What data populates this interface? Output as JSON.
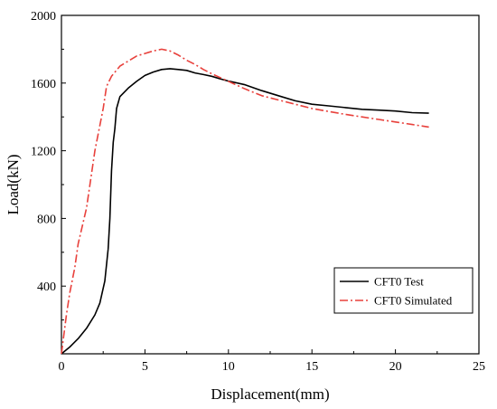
{
  "chart_data": {
    "type": "line",
    "title": "",
    "xlabel": "Displacement(mm)",
    "ylabel": "Load(kN)",
    "xlim": [
      0,
      25
    ],
    "ylim": [
      0,
      2000
    ],
    "xticks": [
      0,
      5,
      10,
      15,
      20,
      25
    ],
    "yticks": [
      400,
      800,
      1200,
      1600,
      2000
    ],
    "grid": false,
    "legend_position": "bottom-right",
    "series": [
      {
        "name": "CFT0 Test",
        "color": "#000000",
        "style": "solid",
        "points": [
          [
            0,
            0
          ],
          [
            0.5,
            40
          ],
          [
            1,
            90
          ],
          [
            1.5,
            150
          ],
          [
            2,
            230
          ],
          [
            2.3,
            300
          ],
          [
            2.6,
            430
          ],
          [
            2.8,
            620
          ],
          [
            2.9,
            800
          ],
          [
            3.0,
            1080
          ],
          [
            3.1,
            1250
          ],
          [
            3.2,
            1330
          ],
          [
            3.3,
            1450
          ],
          [
            3.5,
            1520
          ],
          [
            4,
            1570
          ],
          [
            4.5,
            1610
          ],
          [
            5,
            1645
          ],
          [
            5.5,
            1665
          ],
          [
            6,
            1680
          ],
          [
            6.5,
            1685
          ],
          [
            7,
            1680
          ],
          [
            7.5,
            1675
          ],
          [
            8,
            1660
          ],
          [
            8.5,
            1650
          ],
          [
            9,
            1640
          ],
          [
            9.5,
            1625
          ],
          [
            10,
            1612
          ],
          [
            11,
            1590
          ],
          [
            12,
            1555
          ],
          [
            13,
            1525
          ],
          [
            14,
            1495
          ],
          [
            15,
            1475
          ],
          [
            16,
            1465
          ],
          [
            17,
            1455
          ],
          [
            18,
            1445
          ],
          [
            19,
            1440
          ],
          [
            20,
            1435
          ],
          [
            21,
            1425
          ],
          [
            22,
            1422
          ]
        ]
      },
      {
        "name": "CFT0 Simulated",
        "color": "#e8413c",
        "style": "dashdot",
        "points": [
          [
            0,
            0
          ],
          [
            0.3,
            230
          ],
          [
            0.5,
            360
          ],
          [
            0.8,
            510
          ],
          [
            1,
            650
          ],
          [
            1.5,
            860
          ],
          [
            2,
            1200
          ],
          [
            2.5,
            1450
          ],
          [
            2.7,
            1580
          ],
          [
            3,
            1640
          ],
          [
            3.5,
            1700
          ],
          [
            4,
            1730
          ],
          [
            4.5,
            1760
          ],
          [
            5,
            1775
          ],
          [
            5.5,
            1790
          ],
          [
            6,
            1800
          ],
          [
            6.5,
            1790
          ],
          [
            7,
            1765
          ],
          [
            7.5,
            1735
          ],
          [
            8,
            1710
          ],
          [
            8.5,
            1680
          ],
          [
            9,
            1655
          ],
          [
            10,
            1610
          ],
          [
            11,
            1565
          ],
          [
            12,
            1525
          ],
          [
            13,
            1500
          ],
          [
            14,
            1475
          ],
          [
            15,
            1450
          ],
          [
            16,
            1432
          ],
          [
            17,
            1415
          ],
          [
            18,
            1400
          ],
          [
            19,
            1385
          ],
          [
            20,
            1370
          ],
          [
            21,
            1355
          ],
          [
            22,
            1340
          ]
        ]
      }
    ]
  }
}
